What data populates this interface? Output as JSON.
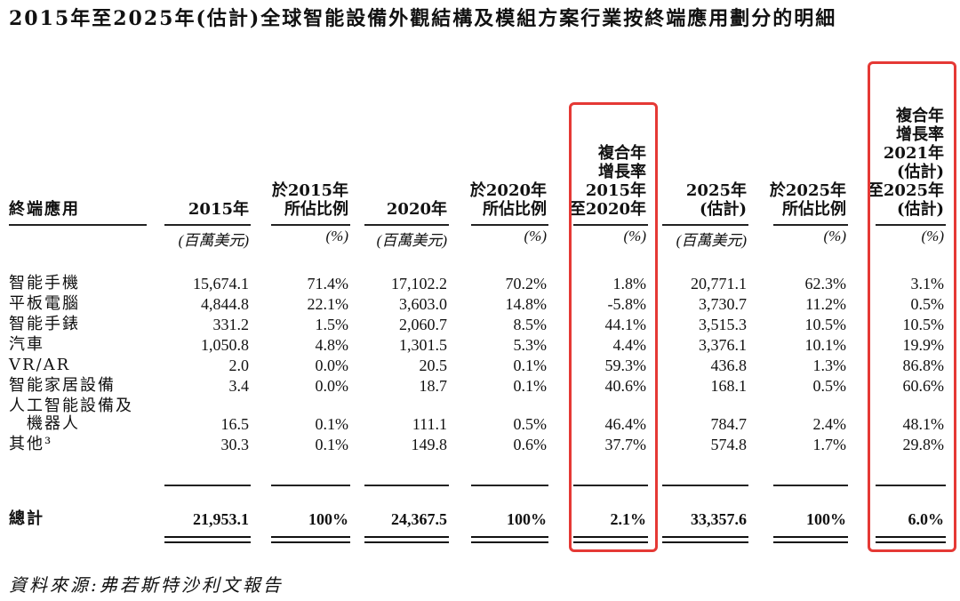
{
  "title": "2015年至2025年(估計)全球智能設備外觀結構及模組方案行業按終端應用劃分的明細",
  "columns": {
    "label": "終端應用",
    "c2015": "2015年",
    "p2015": [
      "於2015年",
      "所佔比例"
    ],
    "c2020": "2020年",
    "p2020": [
      "於2020年",
      "所佔比例"
    ],
    "cagr1": [
      "複合年",
      "增長率",
      "2015年",
      "至2020年"
    ],
    "c2025": [
      "2025年",
      "(估計)"
    ],
    "p2025": [
      "於2025年",
      "所佔比例"
    ],
    "cagr2": [
      "複合年",
      "增長率",
      "2021年",
      "(估計)",
      "至2025年",
      "(估計)"
    ]
  },
  "units": [
    "(百萬美元)",
    "(%)",
    "(百萬美元)",
    "(%)",
    "(%)",
    "(百萬美元)",
    "(%)",
    "(%)"
  ],
  "rows": [
    {
      "label": [
        "智能手機"
      ],
      "values": [
        "15,674.1",
        "71.4%",
        "17,102.2",
        "70.2%",
        "1.8%",
        "20,771.1",
        "62.3%",
        "3.1%"
      ]
    },
    {
      "label": [
        "平板電腦"
      ],
      "values": [
        "4,844.8",
        "22.1%",
        "3,603.0",
        "14.8%",
        "-5.8%",
        "3,730.7",
        "11.2%",
        "0.5%"
      ]
    },
    {
      "label": [
        "智能手錶"
      ],
      "values": [
        "331.2",
        "1.5%",
        "2,060.7",
        "8.5%",
        "44.1%",
        "3,515.3",
        "10.5%",
        "10.5%"
      ]
    },
    {
      "label": [
        "汽車"
      ],
      "values": [
        "1,050.8",
        "4.8%",
        "1,301.5",
        "5.3%",
        "4.4%",
        "3,376.1",
        "10.1%",
        "19.9%"
      ]
    },
    {
      "label": [
        "VR/AR"
      ],
      "values": [
        "2.0",
        "0.0%",
        "20.5",
        "0.1%",
        "59.3%",
        "436.8",
        "1.3%",
        "86.8%"
      ]
    },
    {
      "label": [
        "智能家居設備"
      ],
      "values": [
        "3.4",
        "0.0%",
        "18.7",
        "0.1%",
        "40.6%",
        "168.1",
        "0.5%",
        "60.6%"
      ]
    },
    {
      "label": [
        "人工智能設備及",
        "機器人"
      ],
      "values": [
        "16.5",
        "0.1%",
        "111.1",
        "0.5%",
        "46.4%",
        "784.7",
        "2.4%",
        "48.1%"
      ]
    },
    {
      "label": [
        "其他³"
      ],
      "values": [
        "30.3",
        "0.1%",
        "149.8",
        "0.6%",
        "37.7%",
        "574.8",
        "1.7%",
        "29.8%"
      ]
    }
  ],
  "total": {
    "label": "總計",
    "values": [
      "21,953.1",
      "100%",
      "24,367.5",
      "100%",
      "2.1%",
      "33,357.6",
      "100%",
      "6.0%"
    ]
  },
  "source": "資料來源:弗若斯特沙利文報告",
  "colors": {
    "highlight_box": "#e53935",
    "text": "#111111"
  }
}
